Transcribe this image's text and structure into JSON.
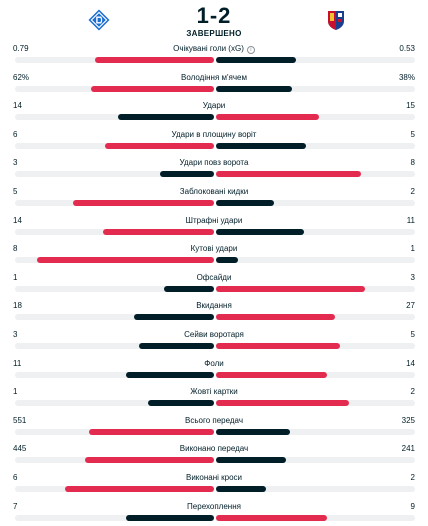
{
  "match": {
    "score": "1-2",
    "status": "ЗАВЕРШЕНО",
    "home_logo_icon": "dynamo-kyiv-crest-icon",
    "away_logo_icon": "viktoria-plzen-crest-icon"
  },
  "colors": {
    "winner_bar": "#e32b50",
    "other_bar": "#001e28",
    "track": "#eef0f1",
    "text": "#001e28"
  },
  "stats": [
    {
      "name": "Очікувані голи (xG)",
      "home": "0.79",
      "away": "0.53",
      "home_share": 0.6,
      "away_share": 0.4,
      "leader": "home",
      "info_icon": true
    },
    {
      "name": "Володіння м'ячем",
      "home": "62%",
      "away": "38%",
      "home_share": 0.62,
      "away_share": 0.38,
      "leader": "home"
    },
    {
      "name": "Удари",
      "home": "14",
      "away": "15",
      "home_share": 0.48,
      "away_share": 0.52,
      "leader": "away"
    },
    {
      "name": "Удари в площину воріт",
      "home": "6",
      "away": "5",
      "home_share": 0.55,
      "away_share": 0.45,
      "leader": "home"
    },
    {
      "name": "Удари повз ворота",
      "home": "3",
      "away": "8",
      "home_share": 0.27,
      "away_share": 0.73,
      "leader": "away"
    },
    {
      "name": "Заблоковані кидки",
      "home": "5",
      "away": "2",
      "home_share": 0.71,
      "away_share": 0.29,
      "leader": "home"
    },
    {
      "name": "Штрафні удари",
      "home": "14",
      "away": "11",
      "home_share": 0.56,
      "away_share": 0.44,
      "leader": "home"
    },
    {
      "name": "Кутові удари",
      "home": "8",
      "away": "1",
      "home_share": 0.89,
      "away_share": 0.11,
      "leader": "home"
    },
    {
      "name": "Офсайди",
      "home": "1",
      "away": "3",
      "home_share": 0.25,
      "away_share": 0.75,
      "leader": "away"
    },
    {
      "name": "Вкидання",
      "home": "18",
      "away": "27",
      "home_share": 0.4,
      "away_share": 0.6,
      "leader": "away"
    },
    {
      "name": "Сейви воротаря",
      "home": "3",
      "away": "5",
      "home_share": 0.375,
      "away_share": 0.625,
      "leader": "away"
    },
    {
      "name": "Фоли",
      "home": "11",
      "away": "14",
      "home_share": 0.44,
      "away_share": 0.56,
      "leader": "away"
    },
    {
      "name": "Жовті картки",
      "home": "1",
      "away": "2",
      "home_share": 0.33,
      "away_share": 0.67,
      "leader": "away"
    },
    {
      "name": "Всього передач",
      "home": "551",
      "away": "325",
      "home_share": 0.63,
      "away_share": 0.37,
      "leader": "home"
    },
    {
      "name": "Виконано передач",
      "home": "445",
      "away": "241",
      "home_share": 0.65,
      "away_share": 0.35,
      "leader": "home"
    },
    {
      "name": "Виконані кроси",
      "home": "6",
      "away": "2",
      "home_share": 0.75,
      "away_share": 0.25,
      "leader": "home"
    },
    {
      "name": "Перехоплення",
      "home": "7",
      "away": "9",
      "home_share": 0.44,
      "away_share": 0.56,
      "leader": "away"
    }
  ]
}
